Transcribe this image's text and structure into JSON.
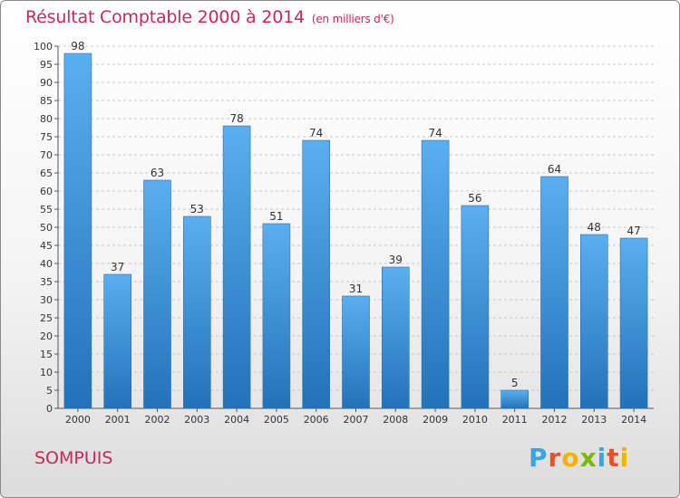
{
  "header": {
    "title": "Résultat Comptable 2000 à 2014",
    "unit": "(en milliers d'€)"
  },
  "commune": "SOMPUIS",
  "logo": {
    "text": "Proxiti",
    "letters": [
      "P",
      "r",
      "o",
      "x",
      "i",
      "t",
      "i"
    ],
    "letter_colors": [
      "#3aa6e0",
      "#e8502a",
      "#f2b300",
      "#7bb800",
      "#3aa6e0",
      "#e8502a",
      "#f2b300"
    ]
  },
  "colors": {
    "bar_light": "#5aaff0",
    "bar_dark": "#2372b8",
    "title": "#c8285a"
  },
  "chart_data": {
    "type": "bar",
    "title": "Résultat Comptable 2000 à 2014",
    "subtitle": "(en milliers d'€)",
    "xlabel": "",
    "ylabel": "",
    "categories": [
      "2000",
      "2001",
      "2002",
      "2003",
      "2004",
      "2005",
      "2006",
      "2007",
      "2008",
      "2009",
      "2010",
      "2011",
      "2012",
      "2013",
      "2014"
    ],
    "values": [
      98,
      37,
      63,
      53,
      78,
      51,
      74,
      31,
      39,
      74,
      56,
      5,
      64,
      48,
      47
    ],
    "ylim": [
      0,
      100
    ],
    "ytick_step": 5,
    "grid": true,
    "data_labels": true
  }
}
